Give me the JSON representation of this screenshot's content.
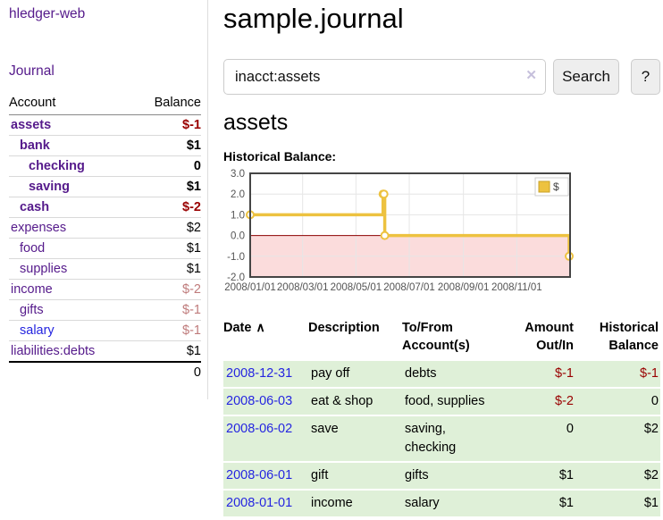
{
  "app": {
    "brand": "hledger-web",
    "nav": {
      "journal": "Journal"
    }
  },
  "colors": {
    "link_purple": "#551a8b",
    "link_blue": "#2525e0",
    "negative_red": "#990000",
    "muted_negative": "#bf7b7b",
    "row_green": "#dff0d8",
    "series_gold": "#EDC240",
    "negative_region_pink": "#fbdcdc",
    "zero_line_dark_red": "#8b0000"
  },
  "sidebar": {
    "header": {
      "account": "Account",
      "balance": "Balance"
    },
    "accounts": [
      {
        "name": "assets",
        "balance": "$-1",
        "indent": 0,
        "bold": true,
        "balance_class": "neg"
      },
      {
        "name": "bank",
        "balance": "$1",
        "indent": 1,
        "bold": true,
        "balance_class": ""
      },
      {
        "name": "checking",
        "balance": "0",
        "indent": 2,
        "bold": true,
        "balance_class": ""
      },
      {
        "name": "saving",
        "balance": "$1",
        "indent": 2,
        "bold": true,
        "balance_class": ""
      },
      {
        "name": "cash",
        "balance": "$-2",
        "indent": 1,
        "bold": true,
        "balance_class": "neg"
      },
      {
        "name": "expenses",
        "balance": "$2",
        "indent": 0,
        "bold": false,
        "balance_class": ""
      },
      {
        "name": "food",
        "balance": "$1",
        "indent": 1,
        "bold": false,
        "balance_class": ""
      },
      {
        "name": "supplies",
        "balance": "$1",
        "indent": 1,
        "bold": false,
        "balance_class": ""
      },
      {
        "name": "income",
        "balance": "$-2",
        "indent": 0,
        "bold": false,
        "balance_class": "mneg"
      },
      {
        "name": "gifts",
        "balance": "$-1",
        "indent": 1,
        "bold": false,
        "balance_class": "mneg"
      },
      {
        "name": "salary",
        "balance": "$-1",
        "indent": 1,
        "bold": false,
        "balance_class": "mneg",
        "link": "blue"
      },
      {
        "name": "liabilities:debts",
        "balance": "$1",
        "indent": 0,
        "bold": false,
        "balance_class": ""
      }
    ],
    "total": "0"
  },
  "header": {
    "title": "sample.journal"
  },
  "search": {
    "value": "inacct:assets",
    "clear_icon": "✕",
    "button_label": "Search",
    "help_label": "?"
  },
  "account_page": {
    "title": "assets",
    "chart_heading": "Historical Balance:"
  },
  "chart_data": {
    "type": "line",
    "step": true,
    "title": "Historical Balance",
    "series": [
      {
        "name": "$",
        "color": "#EDC240",
        "points": [
          [
            "2008-01-01",
            1
          ],
          [
            "2008-06-01",
            2
          ],
          [
            "2008-06-02",
            2
          ],
          [
            "2008-06-03",
            0
          ],
          [
            "2008-12-31",
            -1
          ]
        ]
      }
    ],
    "xlim": [
      "2008-01-01",
      "2009-01-01"
    ],
    "ylim": [
      -2,
      3
    ],
    "x_ticks": [
      "2008/01/01",
      "2008/03/01",
      "2008/05/01",
      "2008/07/01",
      "2008/09/01",
      "2008/11/01"
    ],
    "y_ticks": [
      "3.0",
      "2.0",
      "1.0",
      "0.0",
      "-1.0",
      "-2.0"
    ],
    "grid": true,
    "legend": {
      "label": "$",
      "position": "top-right"
    },
    "negative_region_color": "#fbdcdc",
    "zero_line_color": "#8b0000"
  },
  "register": {
    "headers": [
      {
        "label": "Date",
        "align": "left",
        "sort_icon": "∧"
      },
      {
        "label": "Description",
        "align": "left"
      },
      {
        "label": "To/From Account(s)",
        "align": "left"
      },
      {
        "label": "Amount Out/In",
        "align": "right"
      },
      {
        "label": "Historical Balance",
        "align": "right"
      }
    ],
    "rows": [
      {
        "date": "2008-12-31",
        "description": "pay off",
        "accounts": "debts",
        "amount": "$-1",
        "amount_class": "neg",
        "balance": "$-1",
        "balance_class": "neg"
      },
      {
        "date": "2008-06-03",
        "description": "eat & shop",
        "accounts": "food, supplies",
        "amount": "$-2",
        "amount_class": "neg",
        "balance": "0",
        "balance_class": ""
      },
      {
        "date": "2008-06-02",
        "description": "save",
        "accounts": "saving, checking",
        "amount": "0",
        "amount_class": "",
        "balance": "$2",
        "balance_class": ""
      },
      {
        "date": "2008-06-01",
        "description": "gift",
        "accounts": "gifts",
        "amount": "$1",
        "amount_class": "",
        "balance": "$2",
        "balance_class": ""
      },
      {
        "date": "2008-01-01",
        "description": "income",
        "accounts": "salary",
        "amount": "$1",
        "amount_class": "",
        "balance": "$1",
        "balance_class": ""
      }
    ]
  }
}
